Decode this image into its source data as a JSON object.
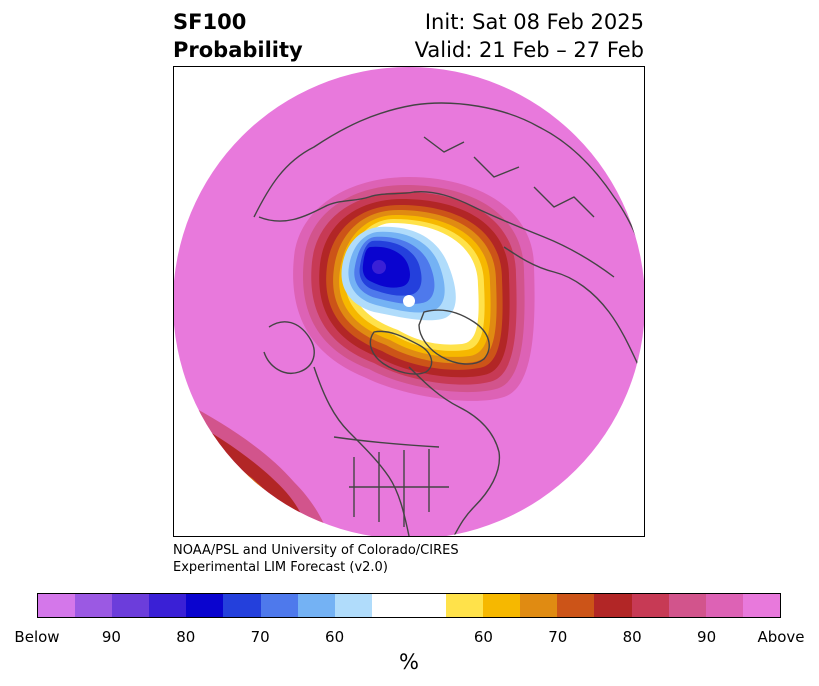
{
  "title": {
    "variable": "SF100",
    "product": "Probability",
    "init": "Init: Sat 08 Feb 2025",
    "valid": "Valid: 21 Feb – 27 Feb"
  },
  "credit": {
    "line1": "NOAA/PSL and University of Colorado/CIRES",
    "line2": "Experimental LIM Forecast (v2.0)"
  },
  "colorbar": {
    "unit": "%",
    "colors": [
      "#d477ea",
      "#9b59e3",
      "#6c3ddb",
      "#3a20d6",
      "#0a04cf",
      "#2440dc",
      "#4e79ec",
      "#74b2f4",
      "#b0dcfb",
      "#ffffff",
      "#ffffff",
      "#ffe24a",
      "#f6b800",
      "#e08b12",
      "#cc5418",
      "#b22626",
      "#c73a55",
      "#d2548c",
      "#dd62b5",
      "#e879dc"
    ],
    "tick_labels": [
      "Below",
      "90",
      "80",
      "70",
      "60",
      "60",
      "70",
      "80",
      "90",
      "Above"
    ]
  },
  "map": {
    "projection": "north polar stereographic",
    "field_colors": {
      "above": "#e879dc",
      "warm_90": "#dd62b5",
      "warm_80": "#d2548c",
      "warm_75": "#c73a55",
      "warm_70": "#b22626",
      "warm_65": "#cc5418",
      "warm_60": "#e08b12",
      "warm_55": "#f6b800",
      "warm_50": "#ffe24a",
      "neutral": "#ffffff",
      "cold_55": "#b0dcfb",
      "cold_60": "#74b2f4",
      "cold_65": "#4e79ec",
      "cold_70": "#2440dc",
      "cold_80": "#0a04cf",
      "cold_90": "#3a20d6"
    },
    "border_color": "#444444"
  }
}
